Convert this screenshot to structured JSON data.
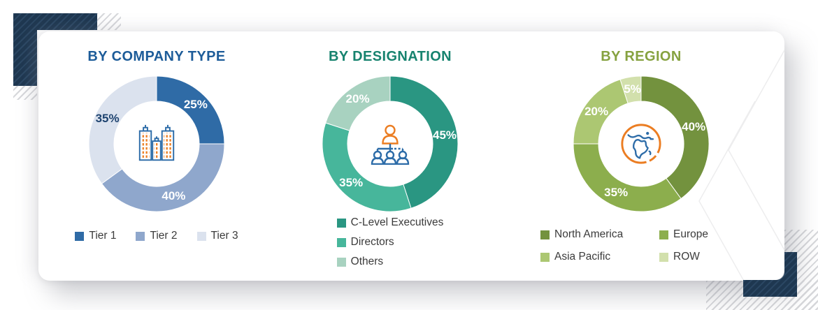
{
  "style": {
    "accent_navy": "#1E3750",
    "hatch_gray": "#d7d8db",
    "chevron_gray": "#ededee",
    "legend_text": "#3B3B3B"
  },
  "icon_colors": {
    "blue": "#2D6CA8",
    "orange": "#EB7D22"
  },
  "chart_data": [
    {
      "type": "pie",
      "variant": "donut",
      "title": "BY COMPANY TYPE",
      "title_color": "#1D5C99",
      "center_icon": "buildings-icon",
      "legend_layout": "row",
      "legend_position": "bottom",
      "start_angle_deg": 0,
      "direction": "clockwise",
      "unit": "%",
      "categories": [
        "Tier 1",
        "Tier 2",
        "Tier 3"
      ],
      "values": [
        25,
        40,
        35
      ],
      "colors": [
        "#2F6BA6",
        "#8FA7CC",
        "#DBE2EE"
      ],
      "slice_labels": [
        "25%",
        "40%",
        "35%"
      ],
      "slice_label_colors": [
        "#ffffff",
        "#ffffff",
        "#1F4470"
      ]
    },
    {
      "type": "pie",
      "variant": "donut",
      "title": "BY DESIGNATION",
      "title_color": "#17836F",
      "center_icon": "org-chart-icon",
      "legend_layout": "column",
      "legend_position": "bottom",
      "start_angle_deg": 0,
      "direction": "clockwise",
      "unit": "%",
      "categories": [
        "C-Level Executives",
        "Directors",
        "Others"
      ],
      "values": [
        45,
        35,
        20
      ],
      "colors": [
        "#2A9682",
        "#47B69B",
        "#A8D2C0"
      ],
      "slice_labels": [
        "45%",
        "35%",
        "20%"
      ],
      "slice_label_colors": [
        "#ffffff",
        "#ffffff",
        "#ffffff"
      ]
    },
    {
      "type": "pie",
      "variant": "donut",
      "title": "BY REGION",
      "title_color": "#86A240",
      "center_icon": "globe-icon",
      "legend_layout": "grid-2col",
      "legend_position": "bottom",
      "start_angle_deg": 0,
      "direction": "clockwise",
      "unit": "%",
      "categories": [
        "North America",
        "Europe",
        "Asia Pacific",
        "ROW"
      ],
      "values": [
        40,
        35,
        20,
        5
      ],
      "colors": [
        "#73923E",
        "#8CAE4D",
        "#ACC772",
        "#D2E0AC"
      ],
      "slice_labels": [
        "40%",
        "35%",
        "20%",
        "5%"
      ],
      "slice_label_colors": [
        "#ffffff",
        "#ffffff",
        "#ffffff",
        "#ffffff"
      ]
    }
  ]
}
